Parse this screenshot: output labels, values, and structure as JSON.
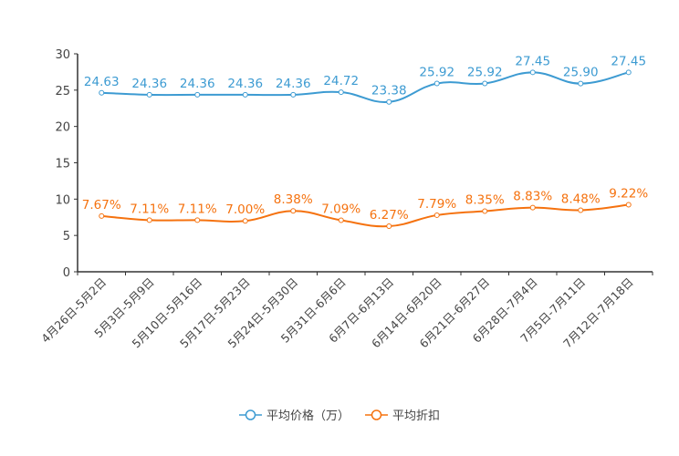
{
  "chart_data": {
    "type": "line",
    "categories": [
      "4月26日-5月2日",
      "5月3日-5月9日",
      "5月10日-5月16日",
      "5月17日-5月23日",
      "5月24日-5月30日",
      "5月31日-6月6日",
      "6月7日-6月13日",
      "6月14日-6月20日",
      "6月21日-6月27日",
      "6月28日-7月4日",
      "7月5日-7月11日",
      "7月12日-7月18日"
    ],
    "series": [
      {
        "name": "平均价格（万）",
        "color": "#3d9bd2",
        "values": [
          24.63,
          24.36,
          24.36,
          24.36,
          24.36,
          24.72,
          23.38,
          25.92,
          25.92,
          27.45,
          25.9,
          27.45
        ],
        "labels": [
          "24.63",
          "24.36",
          "24.36",
          "24.36",
          "24.36",
          "24.72",
          "23.38",
          "25.92",
          "25.92",
          "27.45",
          "25.90",
          "27.45"
        ]
      },
      {
        "name": "平均折扣",
        "color": "#f5720f",
        "values": [
          7.67,
          7.11,
          7.11,
          7.0,
          8.38,
          7.09,
          6.27,
          7.79,
          8.35,
          8.83,
          8.48,
          9.22
        ],
        "labels": [
          "7.67%",
          "7.11%",
          "7.11%",
          "7.00%",
          "8.38%",
          "7.09%",
          "6.27%",
          "7.79%",
          "8.35%",
          "8.83%",
          "8.48%",
          "9.22%"
        ]
      }
    ],
    "yticks": [
      "0",
      "5",
      "10",
      "15",
      "20",
      "25",
      "30"
    ],
    "ylim": [
      0,
      30
    ],
    "xlabel": "",
    "ylabel": "",
    "title": "",
    "grid": false,
    "legend_position": "bottom-center",
    "smooth": true
  }
}
